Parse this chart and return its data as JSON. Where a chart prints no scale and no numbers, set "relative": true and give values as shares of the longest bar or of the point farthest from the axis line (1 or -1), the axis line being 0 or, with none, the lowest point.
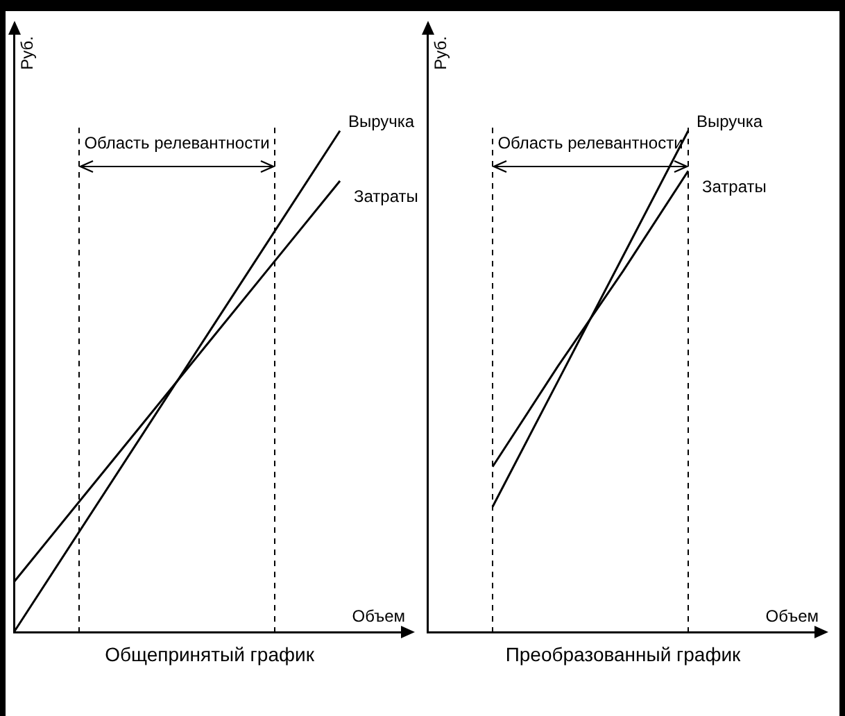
{
  "chart_data": [
    {
      "type": "line",
      "title": "Общепринятый график",
      "xlabel": "Объем",
      "ylabel": "Руб.",
      "relative": true,
      "marker": "none",
      "legend": false,
      "annotations": [
        "Область релевантности"
      ],
      "categories": [
        null,
        null,
        null,
        null,
        null,
        null,
        null
      ],
      "series": [
        {
          "name": "Выручка",
          "color": "#000000",
          "values": [
            0,
            0.2,
            0.4,
            0.6,
            0.8,
            1,
            null
          ]
        },
        {
          "name": "Затраты",
          "color": "#000000",
          "values": [
            0.1,
            0.26,
            0.42,
            0.58,
            0.74,
            0.9,
            null
          ]
        }
      ]
    },
    {
      "type": "line",
      "title": "Преобразованный график",
      "xlabel": "Объем",
      "ylabel": "Руб.",
      "relative": true,
      "marker": "none",
      "legend": false,
      "annotations": [
        "Область релевантности"
      ],
      "categories": [
        null,
        null,
        null,
        null,
        null,
        null,
        null
      ],
      "series": [
        {
          "name": "Выручка",
          "color": "#000000",
          "values": [
            null,
            0.25,
            0.5,
            0.75,
            1,
            null,
            null
          ]
        },
        {
          "name": "Затраты",
          "color": "#000000",
          "values": [
            null,
            0.33,
            0.53,
            0.72,
            0.92,
            null,
            null
          ]
        }
      ]
    }
  ]
}
